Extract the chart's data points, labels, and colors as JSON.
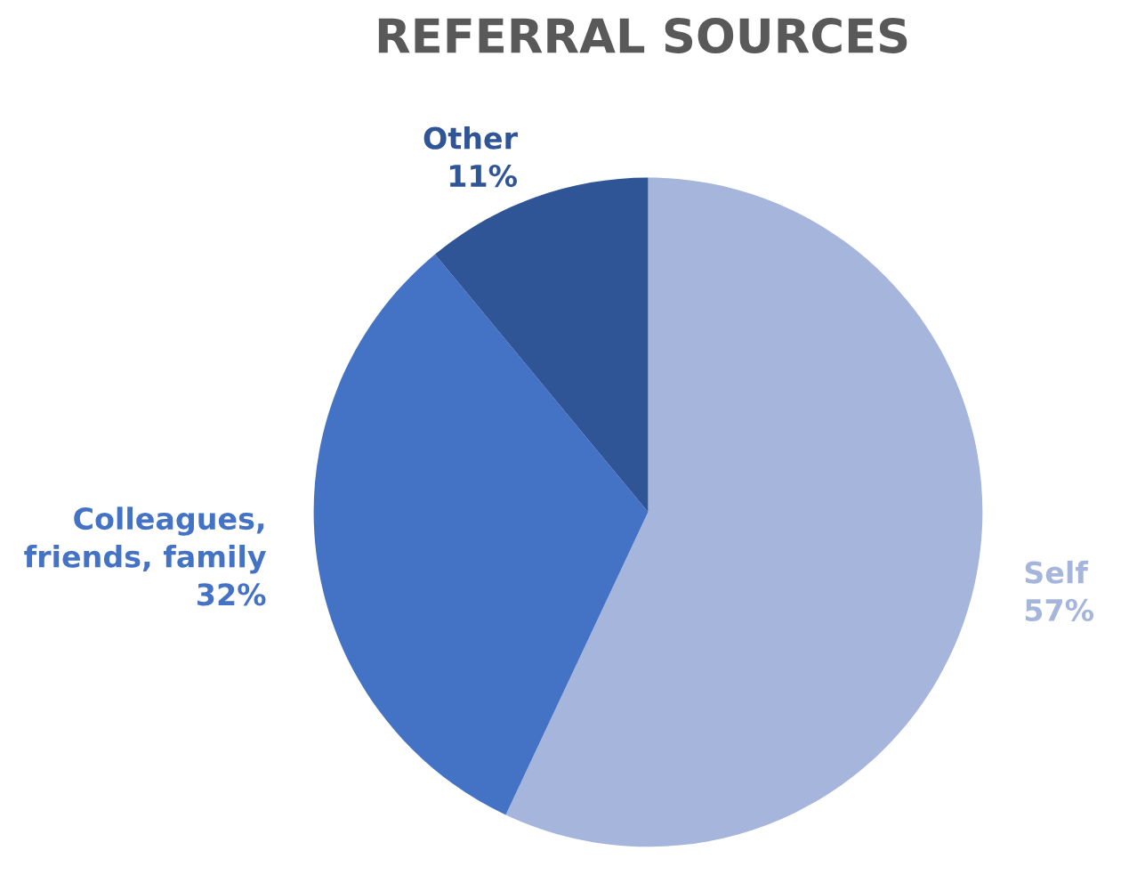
{
  "chart_data": {
    "type": "pie",
    "title": "REFERRAL SOURCES",
    "categories": [
      "Self",
      "Colleagues,\nfriends, family",
      "Other"
    ],
    "values": [
      57,
      32,
      11
    ],
    "value_labels": [
      "57%",
      "32%",
      "11%"
    ],
    "colors": [
      "#a6b5db",
      "#4472c4",
      "#2f5597"
    ]
  }
}
